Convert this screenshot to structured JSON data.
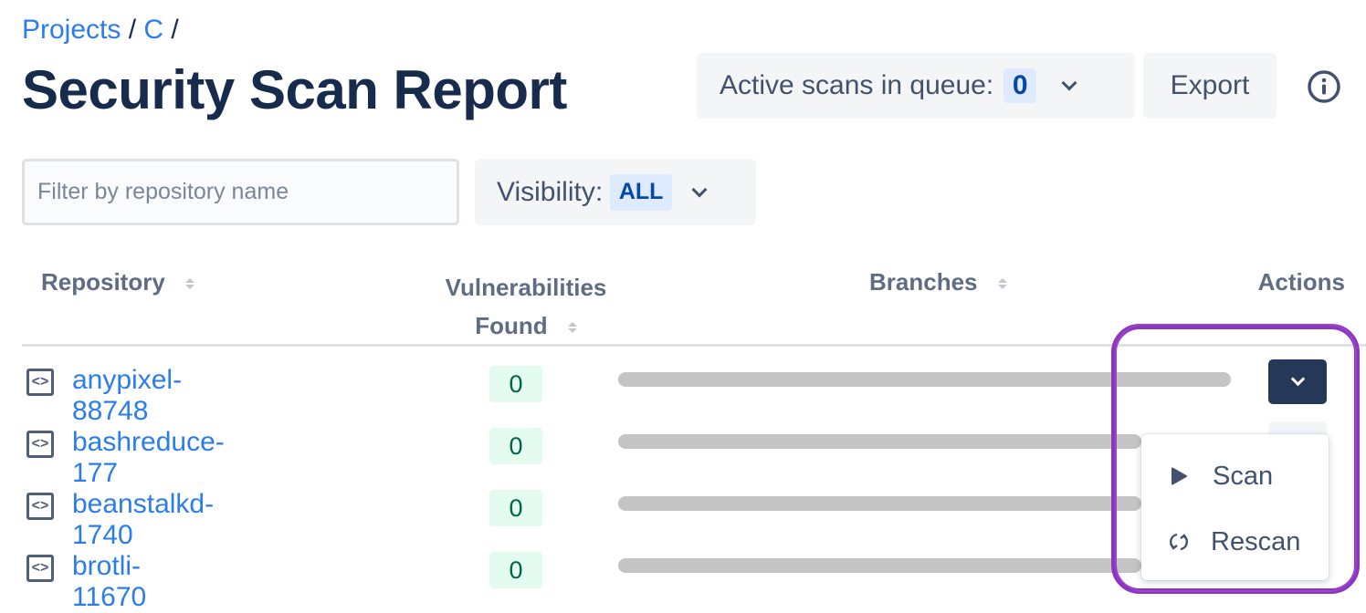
{
  "breadcrumb": [
    {
      "label": "Projects"
    },
    {
      "label": "C"
    }
  ],
  "breadcrumb_sep": "/",
  "page_title": "Security Scan Report",
  "header": {
    "queue_label": "Active scans in queue:",
    "queue_count": "0",
    "export_label": "Export",
    "info_icon": "info-icon"
  },
  "filters": {
    "search_placeholder": "Filter by repository name",
    "visibility_label": "Visibility:",
    "visibility_value": "ALL"
  },
  "table": {
    "columns": {
      "repository": "Repository",
      "vuln_line1": "Vulnerabilities",
      "vuln_line2": "Found",
      "branches": "Branches",
      "actions": "Actions"
    },
    "rows": [
      {
        "name": "anypixel-88748",
        "vulnerabilities": "0"
      },
      {
        "name": "bashreduce-177",
        "vulnerabilities": "0"
      },
      {
        "name": "beanstalkd-1740",
        "vulnerabilities": "0"
      },
      {
        "name": "brotli-11670",
        "vulnerabilities": "0"
      }
    ]
  },
  "actions_menu": {
    "items": [
      {
        "label": "Scan",
        "icon": "play-icon"
      },
      {
        "label": "Rescan",
        "icon": "refresh-icon"
      }
    ]
  },
  "colors": {
    "link": "#2b7de9",
    "action_button": "#253858",
    "highlight": "#8e35c0",
    "vuln_badge_bg": "#e3fcef"
  }
}
